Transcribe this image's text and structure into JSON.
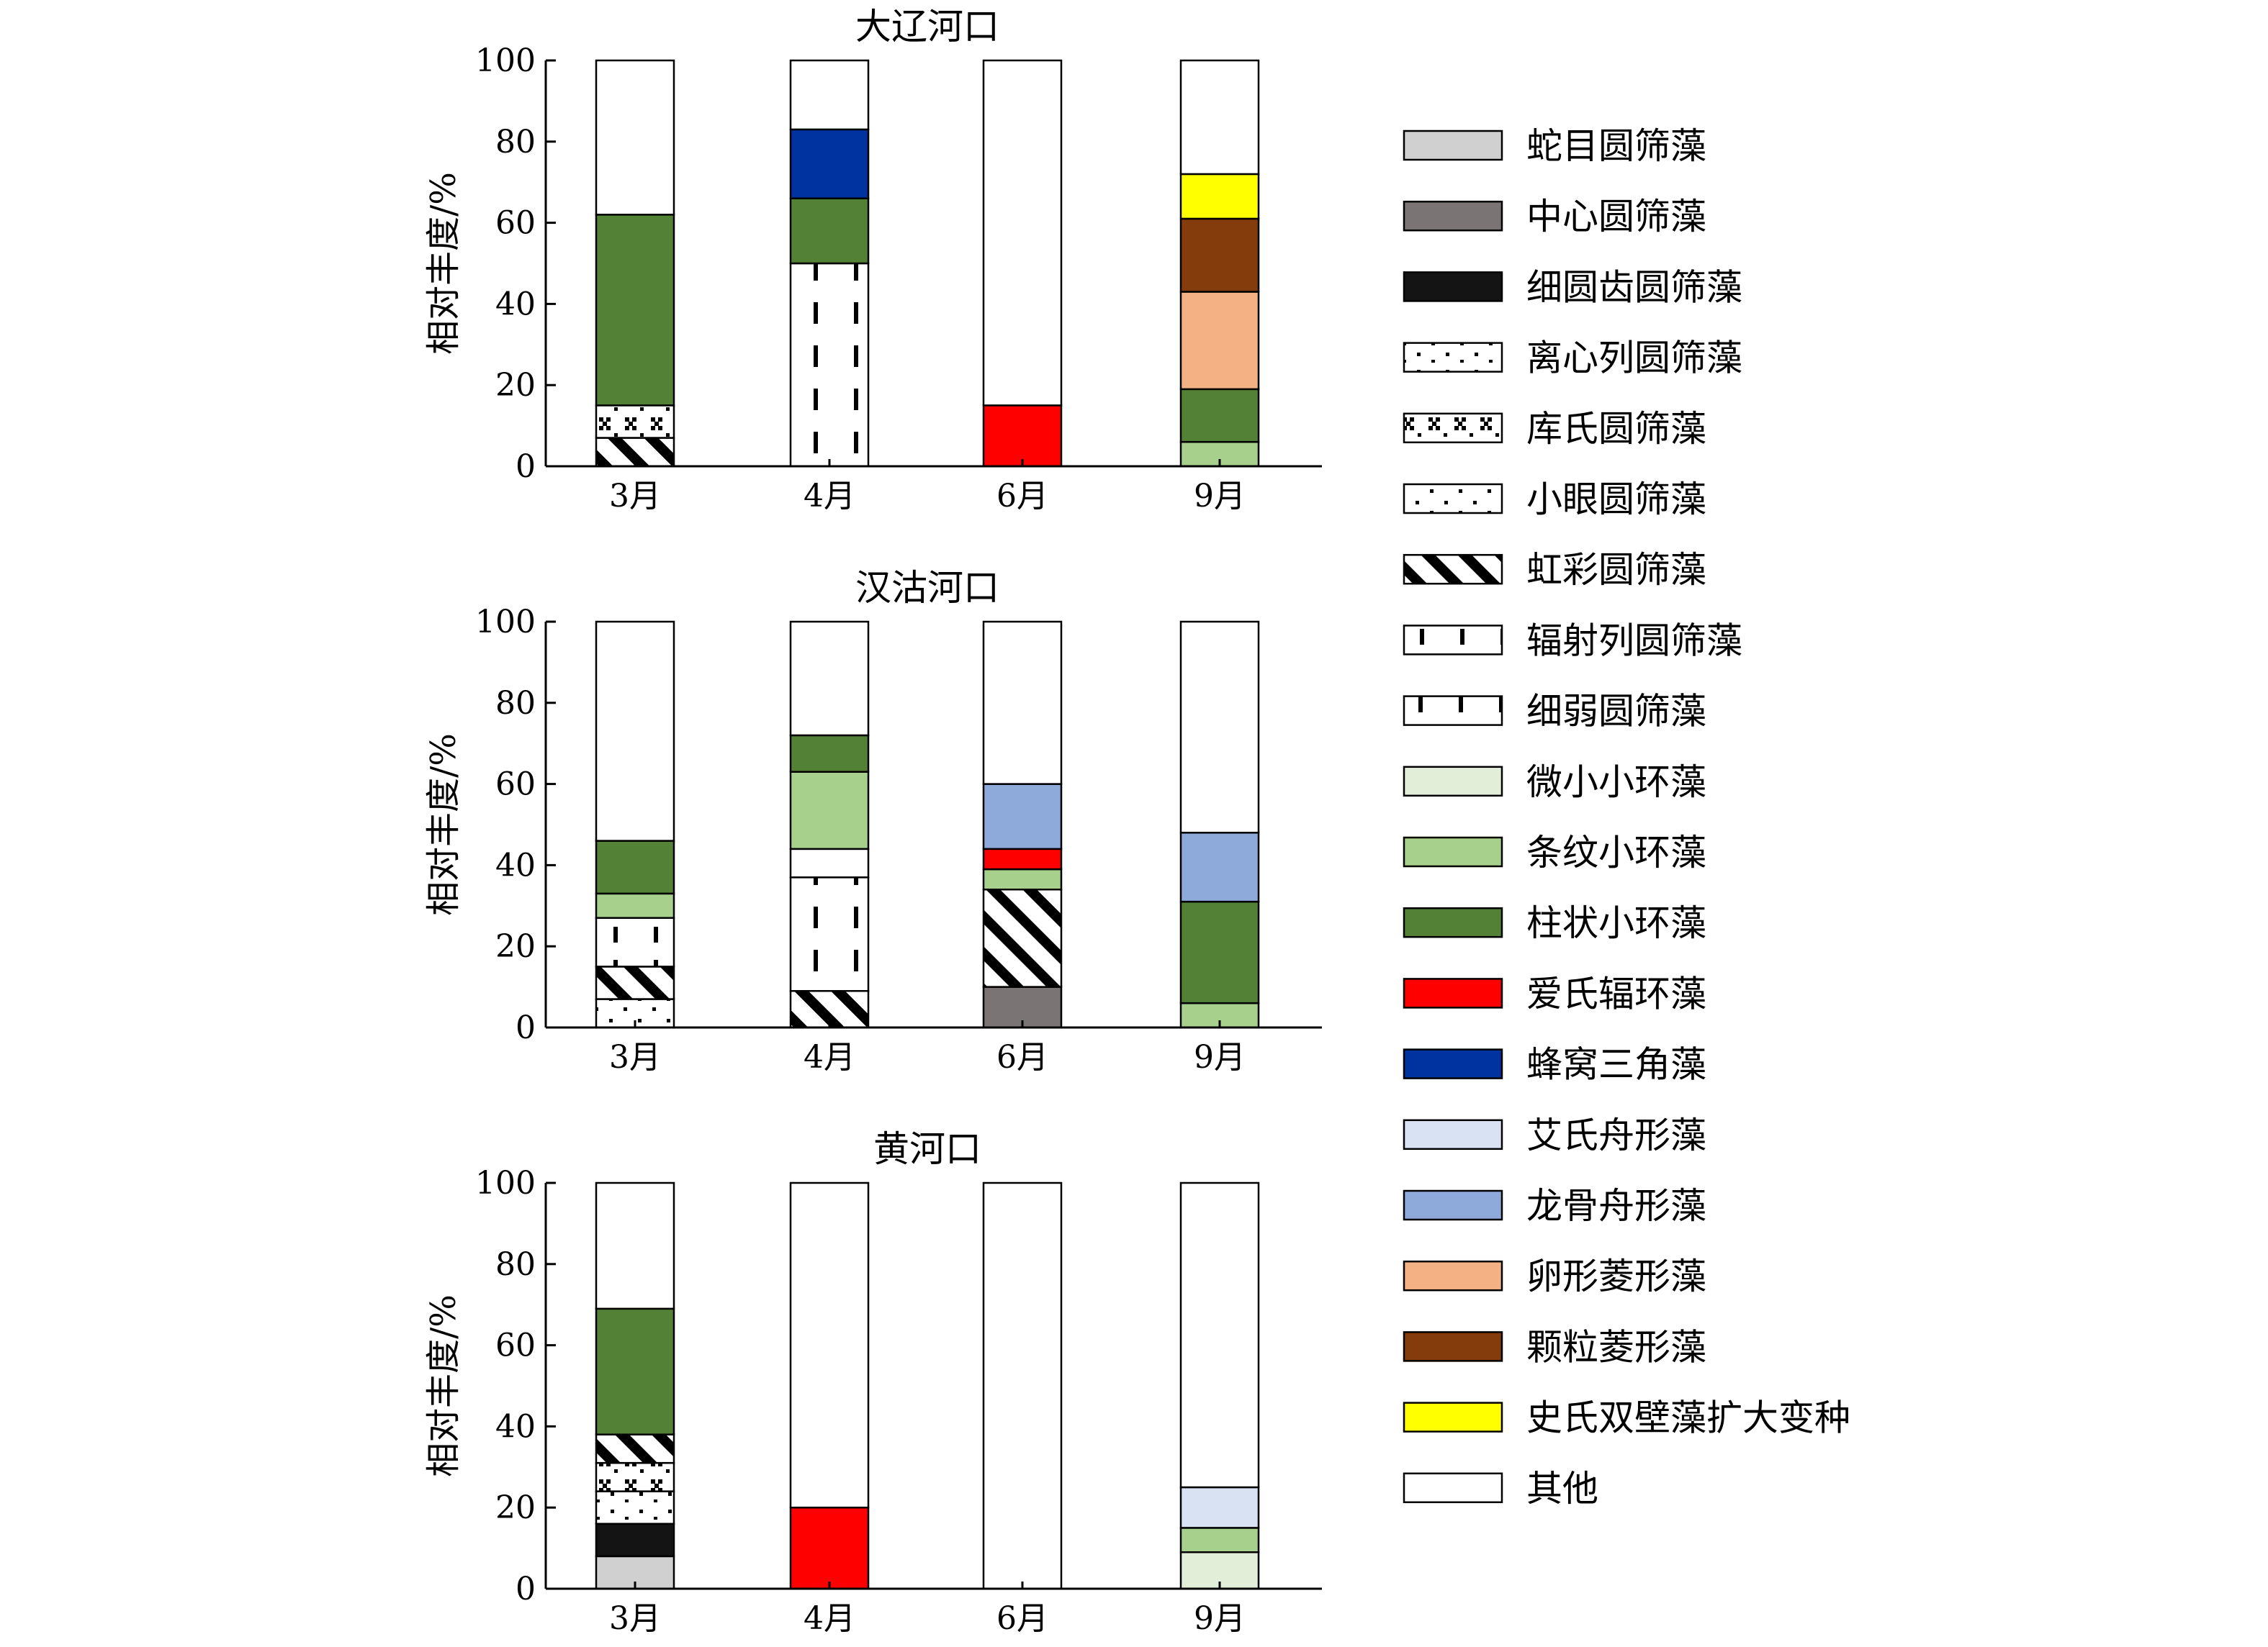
{
  "chart_data": [
    {
      "type": "bar",
      "stacked": true,
      "title": "大辽河口",
      "ylabel": "相对丰度/%",
      "ylim": [
        0,
        100
      ],
      "yticks": [
        0,
        20,
        40,
        60,
        80,
        100
      ],
      "categories": [
        "3月",
        "4月",
        "6月",
        "9月"
      ],
      "stacks": [
        [
          {
            "species": "虹彩圆筛藻",
            "value": 7
          },
          {
            "species": "库氏圆筛藻",
            "value": 8
          },
          {
            "species": "柱状小环藻",
            "value": 47
          },
          {
            "species": "其他",
            "value": 38
          }
        ],
        [
          {
            "species": "细弱圆筛藻",
            "value": 50
          },
          {
            "species": "柱状小环藻",
            "value": 16
          },
          {
            "species": "蜂窝三角藻",
            "value": 17
          },
          {
            "species": "其他",
            "value": 17
          }
        ],
        [
          {
            "species": "爱氏辐环藻",
            "value": 15
          },
          {
            "species": "其他",
            "value": 85
          }
        ],
        [
          {
            "species": "条纹小环藻",
            "value": 6
          },
          {
            "species": "柱状小环藻",
            "value": 13
          },
          {
            "species": "卵形菱形藻",
            "value": 24
          },
          {
            "species": "颗粒菱形藻",
            "value": 18
          },
          {
            "species": "史氏双壁藻扩大变种",
            "value": 11
          },
          {
            "species": "其他",
            "value": 28
          }
        ]
      ]
    },
    {
      "type": "bar",
      "stacked": true,
      "title": "汉沽河口",
      "ylabel": "相对丰度/%",
      "ylim": [
        0,
        100
      ],
      "yticks": [
        0,
        20,
        40,
        60,
        80,
        100
      ],
      "categories": [
        "3月",
        "4月",
        "6月",
        "9月"
      ],
      "stacks": [
        [
          {
            "species": "小眼圆筛藻",
            "value": 7
          },
          {
            "species": "虹彩圆筛藻",
            "value": 8
          },
          {
            "species": "辐射列圆筛藻",
            "value": 12
          },
          {
            "species": "条纹小环藻",
            "value": 6
          },
          {
            "species": "柱状小环藻",
            "value": 13
          },
          {
            "species": "其他",
            "value": 54
          }
        ],
        [
          {
            "species": "虹彩圆筛藻",
            "value": 9
          },
          {
            "species": "细弱圆筛藻",
            "value": 28
          },
          {
            "species": "其他",
            "value": 7
          },
          {
            "species": "条纹小环藻",
            "value": 19
          },
          {
            "species": "柱状小环藻",
            "value": 9
          },
          {
            "species": "其他",
            "value": 28
          }
        ],
        [
          {
            "species": "中心圆筛藻",
            "value": 10
          },
          {
            "species": "虹彩圆筛藻",
            "value": 24
          },
          {
            "species": "条纹小环藻",
            "value": 5
          },
          {
            "species": "爱氏辐环藻",
            "value": 5
          },
          {
            "species": "龙骨舟形藻",
            "value": 16
          },
          {
            "species": "其他",
            "value": 40
          }
        ],
        [
          {
            "species": "条纹小环藻",
            "value": 6
          },
          {
            "species": "柱状小环藻",
            "value": 25
          },
          {
            "species": "龙骨舟形藻",
            "value": 17
          },
          {
            "species": "其他",
            "value": 52
          }
        ]
      ]
    },
    {
      "type": "bar",
      "stacked": true,
      "title": "黄河口",
      "ylabel": "相对丰度/%",
      "ylim": [
        0,
        100
      ],
      "yticks": [
        0,
        20,
        40,
        60,
        80,
        100
      ],
      "categories": [
        "3月",
        "4月",
        "6月",
        "9月"
      ],
      "stacks": [
        [
          {
            "species": "蛇目圆筛藻",
            "value": 8
          },
          {
            "species": "细圆齿圆筛藻",
            "value": 8
          },
          {
            "species": "离心列圆筛藻",
            "value": 8
          },
          {
            "species": "库氏圆筛藻",
            "value": 7
          },
          {
            "species": "虹彩圆筛藻",
            "value": 7
          },
          {
            "species": "柱状小环藻",
            "value": 31
          },
          {
            "species": "其他",
            "value": 31
          }
        ],
        [
          {
            "species": "爱氏辐环藻",
            "value": 20
          },
          {
            "species": "其他",
            "value": 80
          }
        ],
        [
          {
            "species": "其他",
            "value": 100
          }
        ],
        [
          {
            "species": "微小小环藻",
            "value": 9
          },
          {
            "species": "条纹小环藻",
            "value": 6
          },
          {
            "species": "艾氏舟形藻",
            "value": 10
          },
          {
            "species": "其他",
            "value": 75
          }
        ]
      ]
    }
  ],
  "legend": {
    "placement": "right",
    "items": [
      {
        "label": "蛇目圆筛藻",
        "fill": "#d0d0d0",
        "pattern": "solid"
      },
      {
        "label": "中心圆筛藻",
        "fill": "#7a7474",
        "pattern": "solid"
      },
      {
        "label": "细圆齿圆筛藻",
        "fill": "#141414",
        "pattern": "solid"
      },
      {
        "label": "离心列圆筛藻",
        "fill": "#ffffff",
        "pattern": "dots"
      },
      {
        "label": "库氏圆筛藻",
        "fill": "#ffffff",
        "pattern": "cross"
      },
      {
        "label": "小眼圆筛藻",
        "fill": "#ffffff",
        "pattern": "sparse"
      },
      {
        "label": "虹彩圆筛藻",
        "fill": "#ffffff",
        "pattern": "diag"
      },
      {
        "label": "辐射列圆筛藻",
        "fill": "#ffffff",
        "pattern": "ticks"
      },
      {
        "label": "细弱圆筛藻",
        "fill": "#ffffff",
        "pattern": "dashes"
      },
      {
        "label": "微小小环藻",
        "fill": "#e3eed8",
        "pattern": "solid"
      },
      {
        "label": "条纹小环藻",
        "fill": "#a8d08d",
        "pattern": "solid"
      },
      {
        "label": "柱状小环藻",
        "fill": "#538135",
        "pattern": "solid"
      },
      {
        "label": "爱氏辐环藻",
        "fill": "#ff0000",
        "pattern": "solid"
      },
      {
        "label": "蜂窝三角藻",
        "fill": "#0033a0",
        "pattern": "solid"
      },
      {
        "label": "艾氏舟形藻",
        "fill": "#d9e2f3",
        "pattern": "solid"
      },
      {
        "label": "龙骨舟形藻",
        "fill": "#8eaadb",
        "pattern": "solid"
      },
      {
        "label": "卵形菱形藻",
        "fill": "#f4b183",
        "pattern": "solid"
      },
      {
        "label": "颗粒菱形藻",
        "fill": "#843c0c",
        "pattern": "solid"
      },
      {
        "label": "史氏双壁藻扩大变种",
        "fill": "#ffff00",
        "pattern": "solid"
      },
      {
        "label": "其他",
        "fill": "#ffffff",
        "pattern": "solid"
      }
    ]
  }
}
